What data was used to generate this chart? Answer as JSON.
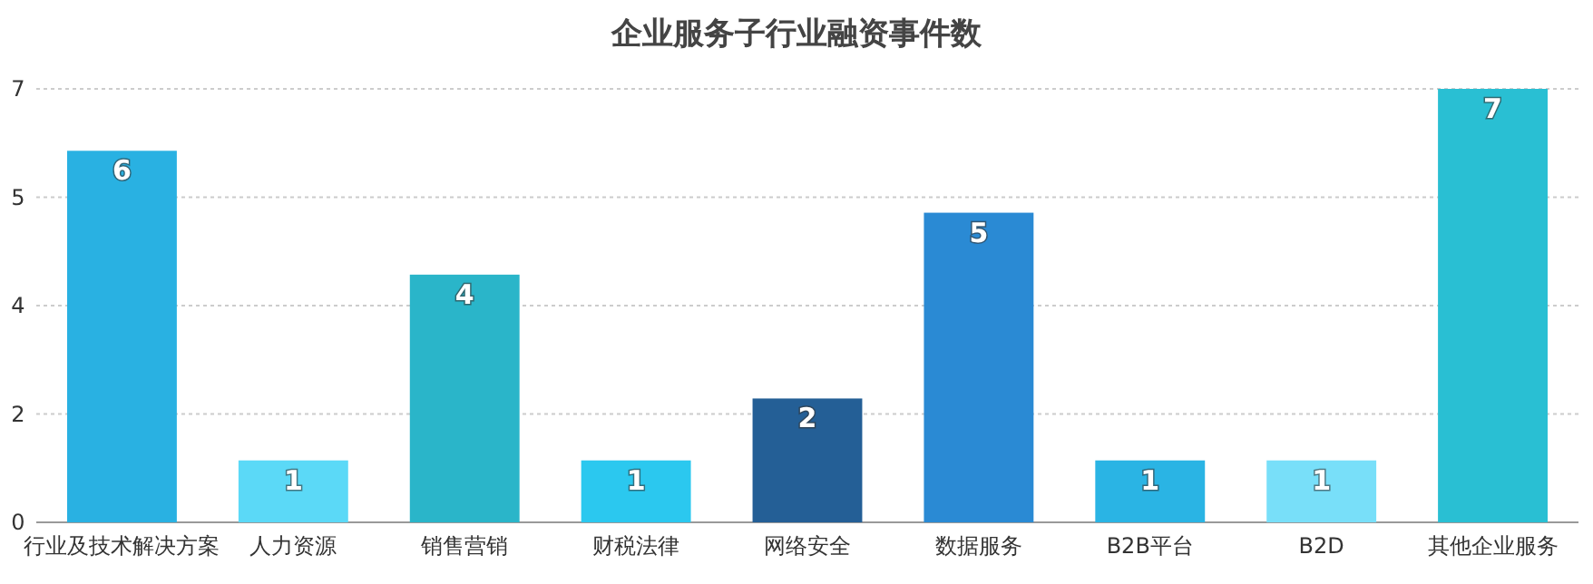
{
  "chart_data": {
    "type": "bar",
    "title": "企业服务子行业融资事件数",
    "categories": [
      "行业及技术解决方案",
      "人力资源",
      "销售营销",
      "财税法律",
      "网络安全",
      "数据服务",
      "B2B平台",
      "B2D",
      "其他企业服务"
    ],
    "values": [
      6,
      1,
      4,
      1,
      2,
      5,
      1,
      1,
      7
    ],
    "colors": [
      "#29b1e2",
      "#5bd9f7",
      "#2ab5c9",
      "#2bc8ef",
      "#245f96",
      "#2a8ad4",
      "#2ab4e4",
      "#78dff9",
      "#29bfd3"
    ],
    "ylim": [
      0,
      7
    ],
    "yticks": [
      0,
      {
        "value": 1.75,
        "label": "2"
      },
      {
        "value": 3.5,
        "label": "4"
      },
      {
        "value": 5.25,
        "label": "5"
      },
      7
    ],
    "grid": "y",
    "data_labels": true
  }
}
